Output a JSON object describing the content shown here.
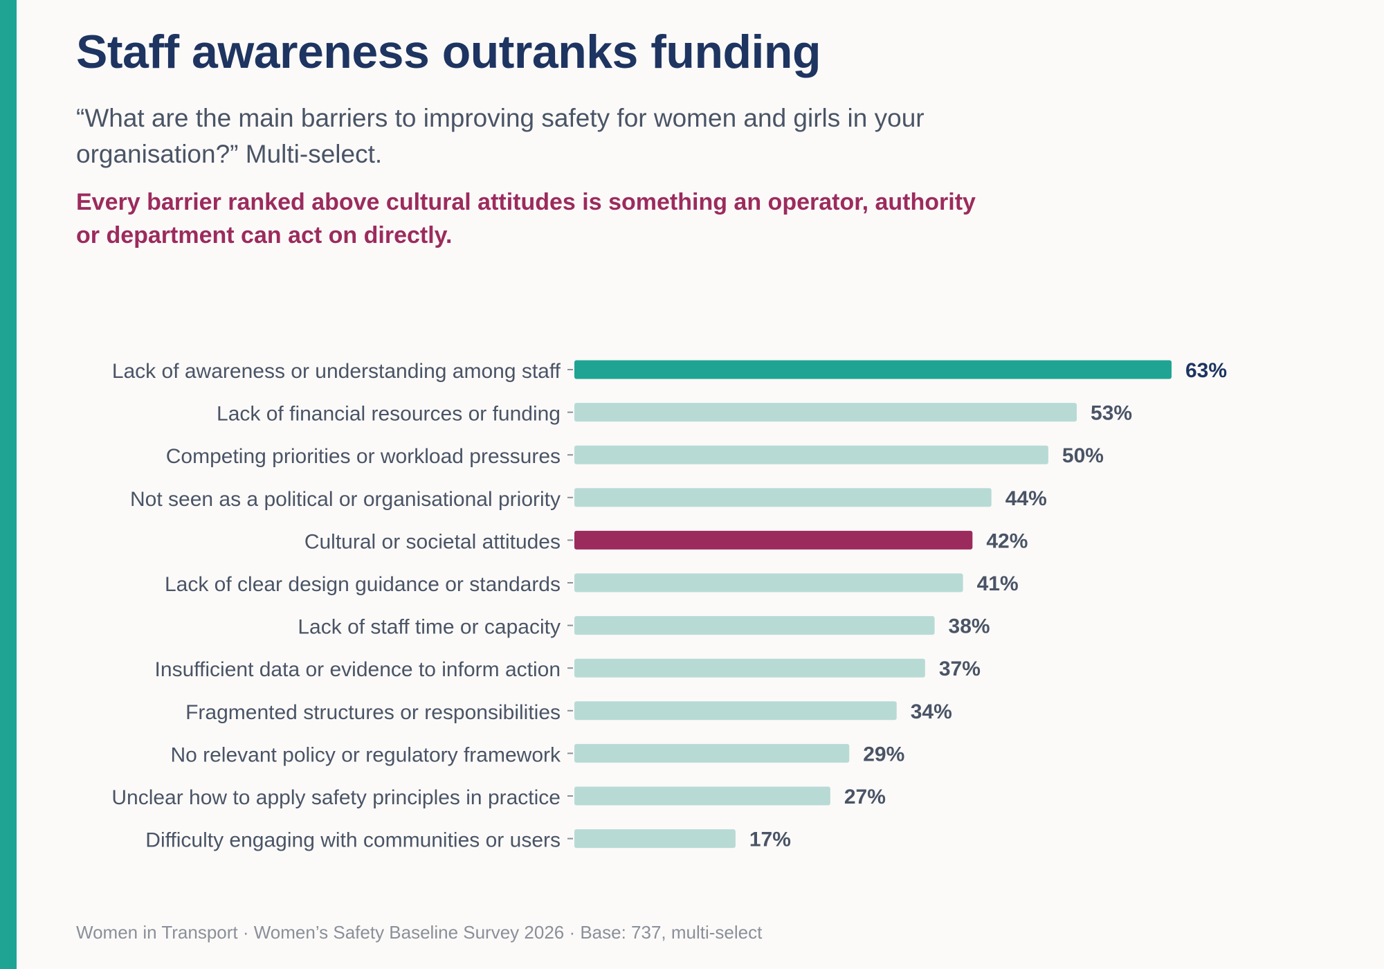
{
  "header": {
    "title": "Staff awareness outranks funding",
    "subtitle": "“What are the main barriers to improving safety for women and girls in your organisation?” Multi-select.",
    "callout": "Every barrier ranked above cultural attitudes is something an operator, authority or department can act on directly."
  },
  "footer": {
    "source": "Women in Transport · Women’s Safety Baseline Survey 2026 · Base: 737, multi-select"
  },
  "colors": {
    "accent": "#1fa393",
    "highlight": "#9c2b5d",
    "default_bar": "#b8dad5",
    "title": "#1e3461",
    "label": "#4a5466"
  },
  "chart_data": {
    "type": "bar",
    "orientation": "horizontal",
    "value_suffix": "%",
    "xlim": [
      0,
      63
    ],
    "grid": false,
    "categories": [
      "Lack of awareness or understanding among staff",
      "Lack of financial resources or funding",
      "Competing priorities or workload pressures",
      "Not seen as a political or organisational priority",
      "Cultural or societal attitudes",
      "Lack of clear design guidance or standards",
      "Lack of staff time or capacity",
      "Insufficient data or evidence to inform action",
      "Fragmented structures or responsibilities",
      "No relevant policy or regulatory framework",
      "Unclear how to apply safety principles in practice",
      "Difficulty engaging with communities or users"
    ],
    "values": [
      63,
      53,
      50,
      44,
      42,
      41,
      38,
      37,
      34,
      29,
      27,
      17
    ],
    "highlight": {
      "Lack of awareness or understanding among staff": "accent",
      "Cultural or societal attitudes": "highlight"
    }
  }
}
